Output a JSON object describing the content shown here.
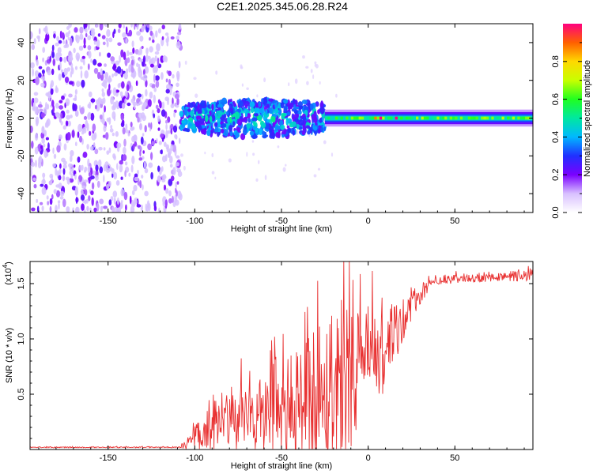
{
  "title": "C2E1.2025.345.06.28.R24",
  "chart_data": [
    {
      "type": "heatmap",
      "name": "spectrogram",
      "xlabel": "Height of straight line (km)",
      "ylabel": "Frequency (Hz)",
      "xlim": [
        -195,
        95
      ],
      "ylim": [
        -50,
        50
      ],
      "xticks": [
        -150,
        -100,
        -50,
        0,
        50
      ],
      "yticks": [
        -40,
        -20,
        0,
        20,
        40
      ],
      "colorbar": {
        "label": "Normalized spectral amplitude",
        "range": [
          0,
          1
        ],
        "ticks": [
          "0.0",
          "0.2",
          "0.4",
          "0.6",
          "0.8"
        ],
        "tick_values": [
          0.0,
          0.2,
          0.4,
          0.6,
          0.8
        ]
      },
      "regions": [
        {
          "x": [
            -195,
            -108
          ],
          "description": "noise, low amplitude scattered",
          "amplitude": [
            0.1,
            0.25
          ]
        },
        {
          "x": [
            -108,
            -25
          ],
          "description": "broad signal around 0 Hz",
          "freq_halfwidth": 10,
          "amplitude": [
            0.2,
            0.55
          ]
        },
        {
          "x": [
            -25,
            95
          ],
          "description": "narrow stable line at 0 Hz",
          "freq_halfwidth": 3,
          "amplitude": [
            0.45,
            1.0
          ]
        }
      ]
    },
    {
      "type": "line",
      "name": "snr",
      "xlabel": "Height of straight line (km)",
      "ylabel": "SNR (10 * v/v)",
      "scale_label": "(x10",
      "scale_exp": "4",
      "xlim": [
        -195,
        95
      ],
      "ylim": [
        0,
        1.7
      ],
      "xticks": [
        -150,
        -100,
        -50,
        0,
        50
      ],
      "yticks": [
        0.5,
        1.0,
        1.5
      ],
      "ytick_labels": [
        "0.5",
        "1.0",
        "1.5"
      ],
      "color": "#e83030",
      "series": [
        {
          "name": "SNR",
          "x": [
            -195,
            -110,
            -105,
            -100,
            -95,
            -90,
            -85,
            -80,
            -75,
            -70,
            -65,
            -60,
            -55,
            -50,
            -45,
            -40,
            -35,
            -30,
            -25,
            -20,
            -15,
            -10,
            -5,
            0,
            5,
            10,
            15,
            20,
            25,
            30,
            35,
            40,
            45,
            50,
            55,
            60,
            65,
            70,
            75,
            80,
            85,
            90,
            95
          ],
          "y": [
            0.02,
            0.02,
            0.04,
            0.12,
            0.15,
            0.18,
            0.22,
            0.24,
            0.25,
            0.27,
            0.28,
            0.3,
            0.32,
            0.33,
            0.35,
            0.4,
            0.45,
            0.5,
            0.55,
            0.6,
            0.65,
            0.72,
            0.75,
            0.8,
            0.85,
            0.9,
            1.0,
            1.15,
            1.3,
            1.4,
            1.48,
            1.52,
            1.53,
            1.54,
            1.55,
            1.55,
            1.55,
            1.56,
            1.56,
            1.56,
            1.57,
            1.57,
            1.57
          ],
          "spread": [
            0.005,
            0.005,
            0.04,
            0.15,
            0.15,
            0.2,
            0.3,
            0.3,
            0.3,
            0.35,
            0.35,
            0.4,
            0.4,
            0.4,
            0.5,
            0.55,
            0.6,
            0.7,
            0.75,
            0.8,
            0.8,
            0.7,
            0.5,
            0.5,
            0.45,
            0.4,
            0.3,
            0.2,
            0.15,
            0.1,
            0.05,
            0.04,
            0.04,
            0.04,
            0.04,
            0.04,
            0.04,
            0.04,
            0.04,
            0.04,
            0.05,
            0.05,
            0.06
          ]
        }
      ]
    }
  ]
}
